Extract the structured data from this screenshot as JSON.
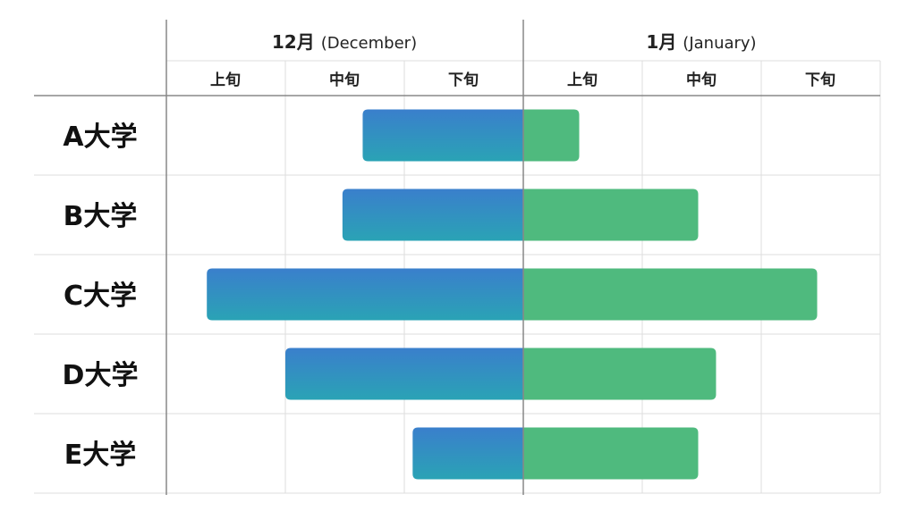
{
  "chart_data": {
    "type": "bar",
    "months": [
      {
        "label": "12月",
        "sub": "(December)"
      },
      {
        "label": "1月",
        "sub": "(January)"
      }
    ],
    "periods": [
      "上旬",
      "中旬",
      "下旬",
      "上旬",
      "中旬",
      "下旬"
    ],
    "categories": [
      "A大学",
      "B大学",
      "C大学",
      "D大学",
      "E大学"
    ],
    "bars": [
      {
        "dec_start": 1.65,
        "jan_end": 0.47
      },
      {
        "dec_start": 1.48,
        "jan_end": 1.47
      },
      {
        "dec_start": 0.34,
        "jan_end": 2.47
      },
      {
        "dec_start": 1.0,
        "jan_end": 1.62
      },
      {
        "dec_start": 2.07,
        "jan_end": 1.47
      }
    ],
    "x_unit": "旬 (1/3 month)",
    "xlim": [
      0,
      6
    ],
    "grid": true,
    "colors": {
      "december_gradient": [
        "#3a7fcc",
        "#2aa3b5"
      ],
      "january": "#4fba7e",
      "grid": "#dddddd",
      "divider": "#888888"
    }
  }
}
